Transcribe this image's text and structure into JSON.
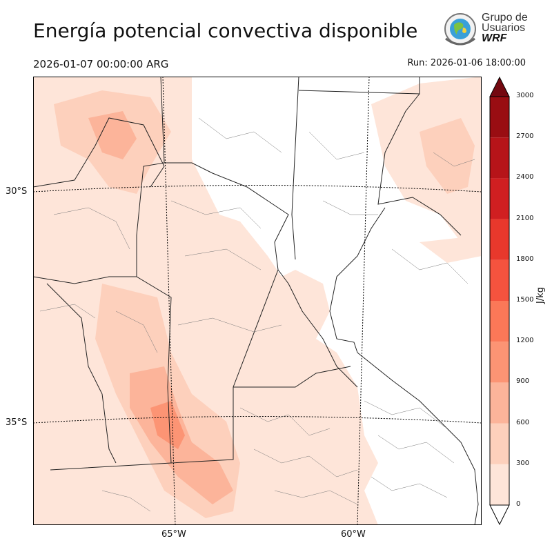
{
  "header": {
    "title": "Energía potencial convectiva disponible",
    "valid_time": "2026-01-07 00:00:00 ARG",
    "run_time": "Run: 2026-01-06 18:00:00"
  },
  "logo": {
    "line1": "Grupo de",
    "line2": "Usuarios",
    "line3": "WRF"
  },
  "map": {
    "lat_labels": [
      "30°S",
      "35°S"
    ],
    "lon_labels": [
      "65°W",
      "60°W"
    ]
  },
  "colorbar": {
    "units": "J/kg",
    "ticks": [
      "0",
      "300",
      "600",
      "900",
      "1200",
      "1500",
      "1800",
      "2100",
      "2400",
      "2700",
      "3000"
    ],
    "colors": [
      "#fee5d9",
      "#fdd0bc",
      "#fcb49a",
      "#fc9474",
      "#fb7858",
      "#f5533e",
      "#e8382c",
      "#d01f21",
      "#b61419",
      "#990d12",
      "#740810"
    ]
  }
}
